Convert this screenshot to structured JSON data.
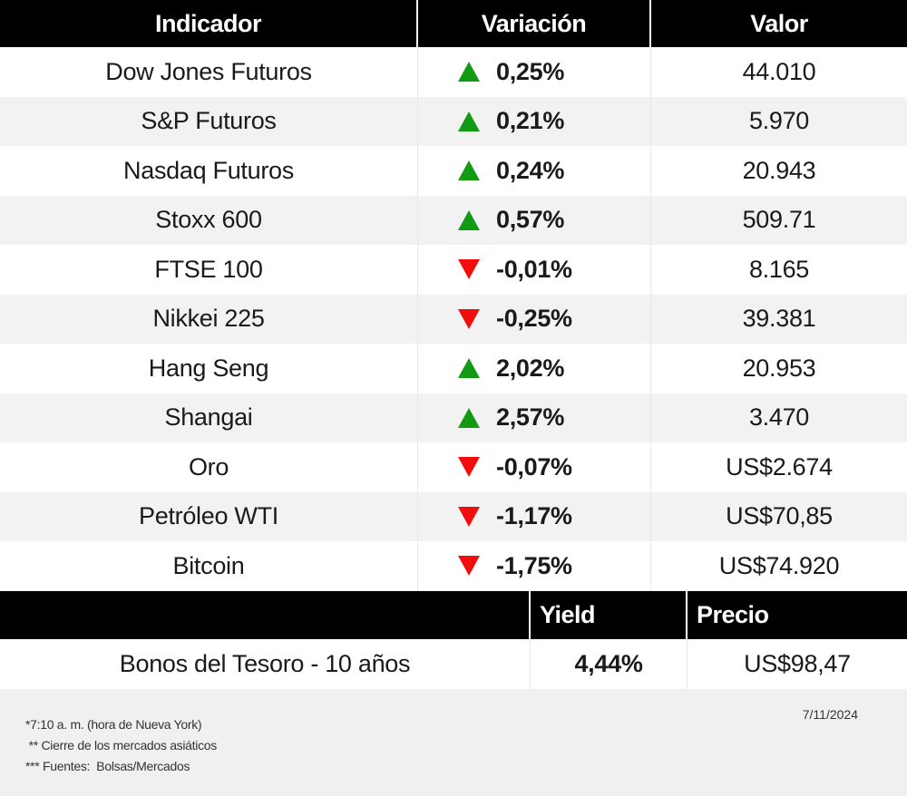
{
  "table": {
    "headers": [
      "Indicador",
      "Variación",
      "Valor"
    ],
    "rows": [
      {
        "name": "Dow Jones Futuros",
        "direction": "up",
        "change": "0,25%",
        "value": "44.010"
      },
      {
        "name": "S&P Futuros",
        "direction": "up",
        "change": "0,21%",
        "value": "5.970"
      },
      {
        "name": "Nasdaq Futuros",
        "direction": "up",
        "change": "0,24%",
        "value": "20.943"
      },
      {
        "name": "Stoxx 600",
        "direction": "up",
        "change": "0,57%",
        "value": "509.71"
      },
      {
        "name": "FTSE 100",
        "direction": "down",
        "change": "-0,01%",
        "value": "8.165"
      },
      {
        "name": "Nikkei 225",
        "direction": "down",
        "change": "-0,25%",
        "value": "39.381"
      },
      {
        "name": "Hang Seng",
        "direction": "up",
        "change": "2,02%",
        "value": "20.953"
      },
      {
        "name": "Shangai",
        "direction": "up",
        "change": "2,57%",
        "value": "3.470"
      },
      {
        "name": "Oro",
        "direction": "down",
        "change": "-0,07%",
        "value": "US$2.674"
      },
      {
        "name": "Petróleo WTI",
        "direction": "down",
        "change": "-1,17%",
        "value": "US$70,85"
      },
      {
        "name": "Bitcoin",
        "direction": "down",
        "change": "-1,75%",
        "value": "US$74.920"
      }
    ]
  },
  "bonds": {
    "headers": [
      "",
      "Yield",
      "Precio"
    ],
    "row": {
      "name": "Bonos del Tesoro - 10 años",
      "yield": "4,44%",
      "price": "US$98,47"
    }
  },
  "footer": {
    "notes": [
      "*7:10 a. m. (hora de Nueva York)",
      " ** Cierre de los mercados asiáticos",
      "*** Fuentes:  Bolsas/Mercados"
    ],
    "date": "7/11/2024"
  },
  "colors": {
    "up": "#129b12",
    "down": "#f20c0c",
    "header_bg": "#000000",
    "alt_row": "#f2f2f2"
  },
  "chart_data": {
    "type": "table",
    "title": "",
    "columns": [
      "Indicador",
      "Variación",
      "Valor"
    ],
    "rows": [
      [
        "Dow Jones Futuros",
        "0,25%",
        "44.010"
      ],
      [
        "S&P Futuros",
        "0,21%",
        "5.970"
      ],
      [
        "Nasdaq Futuros",
        "0,24%",
        "20.943"
      ],
      [
        "Stoxx 600",
        "0,57%",
        "509.71"
      ],
      [
        "FTSE 100",
        "-0,01%",
        "8.165"
      ],
      [
        "Nikkei 225",
        "-0,25%",
        "39.381"
      ],
      [
        "Hang Seng",
        "2,02%",
        "20.953"
      ],
      [
        "Shangai",
        "2,57%",
        "3.470"
      ],
      [
        "Oro",
        "-0,07%",
        "US$2.674"
      ],
      [
        "Petróleo WTI",
        "-1,17%",
        "US$70,85"
      ],
      [
        "Bitcoin",
        "-1,75%",
        "US$74.920"
      ]
    ],
    "secondary_table": {
      "columns": [
        "",
        "Yield",
        "Precio"
      ],
      "rows": [
        [
          "Bonos del Tesoro - 10 años",
          "4,44%",
          "US$98,47"
        ]
      ]
    }
  }
}
